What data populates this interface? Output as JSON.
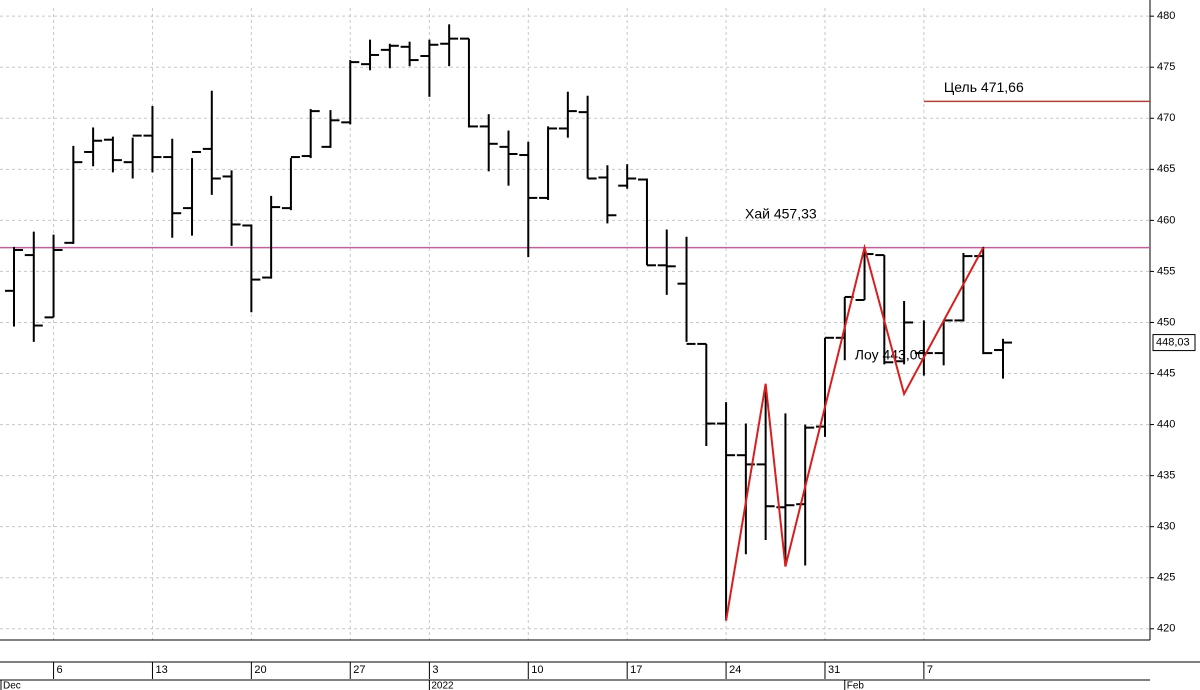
{
  "chart_data": {
    "type": "ohlc",
    "categories": [
      null,
      null,
      "6",
      null,
      null,
      null,
      null,
      "13",
      null,
      null,
      null,
      null,
      "20",
      null,
      null,
      null,
      null,
      "27",
      null,
      null,
      null,
      "3",
      null,
      null,
      null,
      null,
      "10",
      null,
      null,
      null,
      null,
      "17",
      null,
      null,
      null,
      null,
      "24",
      null,
      null,
      null,
      null,
      "31",
      null,
      null,
      null,
      null,
      "7",
      null,
      null,
      null,
      null
    ],
    "months": [
      "Dec",
      null,
      null,
      null,
      null,
      null,
      null,
      null,
      null,
      null,
      null,
      null,
      null,
      null,
      null,
      null,
      null,
      null,
      null,
      null,
      null,
      "2022",
      null,
      null,
      null,
      null,
      null,
      null,
      null,
      null,
      null,
      null,
      null,
      null,
      null,
      null,
      null,
      null,
      null,
      null,
      null,
      null,
      "Feb",
      null,
      null,
      null,
      null,
      null,
      null,
      null,
      null
    ],
    "open": [
      453.1,
      456.6,
      450.5,
      457.8,
      466.7,
      467.9,
      465.7,
      468.3,
      466.2,
      461.2,
      467.0,
      464.3,
      459.5,
      454.4,
      461.2,
      466.3,
      467.2,
      469.6,
      475.3,
      476.7,
      477.0,
      476.1,
      477.3,
      477.8,
      469.2,
      467.2,
      466.4,
      462.2,
      469.0,
      470.6,
      464.2,
      463.4,
      464.0,
      455.6,
      453.8,
      447.9,
      440.1,
      437.0,
      436.1,
      431.9,
      432.2,
      439.8,
      448.5,
      452.2,
      456.6,
      446.2,
      447.0,
      447.0,
      450.2,
      456.5,
      447.3
    ],
    "high": [
      457.4,
      458.9,
      458.6,
      467.3,
      469.1,
      468.2,
      468.1,
      471.2,
      468.0,
      466.1,
      472.7,
      464.9,
      459.6,
      462.4,
      466.1,
      470.9,
      470.8,
      475.7,
      477.7,
      477.3,
      477.5,
      477.7,
      479.2,
      477.8,
      470.4,
      468.8,
      467.7,
      469.2,
      472.6,
      472.2,
      465.4,
      465.5,
      464.1,
      459.1,
      458.4,
      447.9,
      442.2,
      440.1,
      443.7,
      441.1,
      440.0,
      448.5,
      452.5,
      457.4,
      456.6,
      452.1,
      450.2,
      450.2,
      456.8,
      457.4,
      448.4
    ],
    "low": [
      449.6,
      448.1,
      450.5,
      457.7,
      465.3,
      464.7,
      464.1,
      464.7,
      458.3,
      458.5,
      462.5,
      457.5,
      451.0,
      454.3,
      461.0,
      466.1,
      467.1,
      469.4,
      474.7,
      474.9,
      475.1,
      472.1,
      475.1,
      469.1,
      464.8,
      463.4,
      456.4,
      462.0,
      468.1,
      464.1,
      459.7,
      463.1,
      455.6,
      452.7,
      448.1,
      437.9,
      420.8,
      427.3,
      428.7,
      426.1,
      426.2,
      438.8,
      446.3,
      452.2,
      445.9,
      445.9,
      444.8,
      445.8,
      450.1,
      446.9,
      444.5
    ],
    "close": [
      457.1,
      449.7,
      457.1,
      465.7,
      467.8,
      465.9,
      468.3,
      466.2,
      460.7,
      466.7,
      464.1,
      459.6,
      454.2,
      461.3,
      466.2,
      470.7,
      469.8,
      475.5,
      476.2,
      477.1,
      475.7,
      477.2,
      477.8,
      469.2,
      467.5,
      466.5,
      462.2,
      469.0,
      470.7,
      464.1,
      460.5,
      464.1,
      455.6,
      455.5,
      447.9,
      440.1,
      437.0,
      436.1,
      432.0,
      432.1,
      439.7,
      448.5,
      452.5,
      456.7,
      446.1,
      450.0,
      447.0,
      450.2,
      456.5,
      447.0,
      448.03
    ],
    "last_label": "448,03",
    "color": "#000000",
    "ylim": [
      418.9,
      480.8
    ],
    "yticks": [
      420,
      425,
      430,
      435,
      440,
      445,
      450,
      455,
      460,
      465,
      470,
      475,
      480
    ],
    "grid": true,
    "zigzag": {
      "color": "#d81e1e",
      "x": [
        36,
        38,
        39,
        43,
        45,
        49
      ],
      "values": [
        420.8,
        444.0,
        426.1,
        457.33,
        443.0,
        457.33
      ]
    },
    "levels": [
      {
        "text": "Хай 457,33",
        "value": 457.33,
        "color": "#c0609a",
        "from": 0
      },
      {
        "text": "Цель 471,66",
        "value": 471.66,
        "color": "#b0403a",
        "from": 46
      }
    ],
    "annotations": [
      {
        "text": "Лоу 443,00",
        "value": 443.0,
        "x": 42
      }
    ]
  }
}
